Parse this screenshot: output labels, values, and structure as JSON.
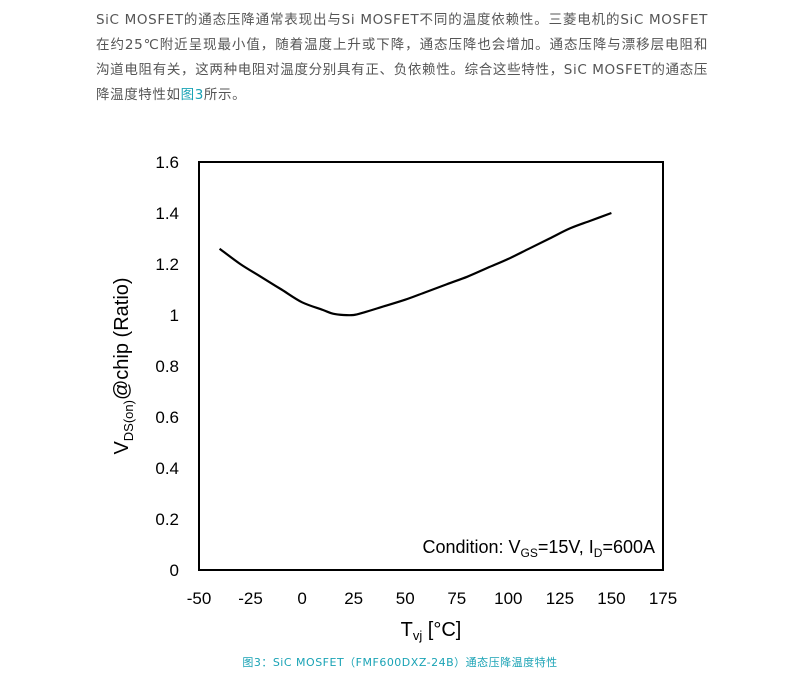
{
  "article": {
    "text": "SiC MOSFET的通态压降通常表现出与Si MOSFET不同的温度依赖性。三菱电机的SiC MOSFET在约25℃附近呈现最小值，随着温度上升或下降，通态压降也会增加。通态压降与漂移层电阻和沟道电阻有关，这两种电阻对温度分别具有正、负依赖性。综合这些特性，SiC MOSFET的通态压降温度特性如",
    "link_text": "图3",
    "text_end": "所示。"
  },
  "figure": {
    "caption": "图3：SiC MOSFET（FMF600DXZ-24B）通态压降温度特性"
  },
  "colors": {
    "accent": "#1aa3b5",
    "text": "#555555",
    "line": "#000000"
  },
  "chart_data": {
    "type": "line",
    "xlabel": {
      "main": "T",
      "sub": "vj",
      "rest": " [°C]"
    },
    "ylabel": {
      "main": "V",
      "sub": "DS(on)",
      "rest": "@chip (Ratio)"
    },
    "xlim": [
      -50,
      175
    ],
    "ylim": [
      0,
      1.6
    ],
    "x_ticks": [
      "-50",
      "-25",
      "0",
      "25",
      "50",
      "75",
      "100",
      "125",
      "150",
      "175"
    ],
    "y_ticks": [
      "0",
      "0.2",
      "0.4",
      "0.6",
      "0.8",
      "1",
      "1.2",
      "1.4",
      "1.6"
    ],
    "grid": false,
    "annotation": {
      "p1": "Condition: V",
      "s1": "GS",
      "p2": "=15V, I",
      "s2": "D",
      "p3": "=600A"
    },
    "series": [
      {
        "x": [
          -40,
          -30,
          -20,
          -10,
          0,
          10,
          15,
          20,
          25,
          30,
          40,
          50,
          60,
          70,
          80,
          90,
          100,
          110,
          120,
          130,
          140,
          150
        ],
        "y": [
          1.26,
          1.2,
          1.15,
          1.1,
          1.05,
          1.02,
          1.005,
          1.0,
          1.0,
          1.01,
          1.035,
          1.06,
          1.09,
          1.12,
          1.15,
          1.185,
          1.22,
          1.26,
          1.3,
          1.34,
          1.37,
          1.4
        ]
      }
    ]
  }
}
